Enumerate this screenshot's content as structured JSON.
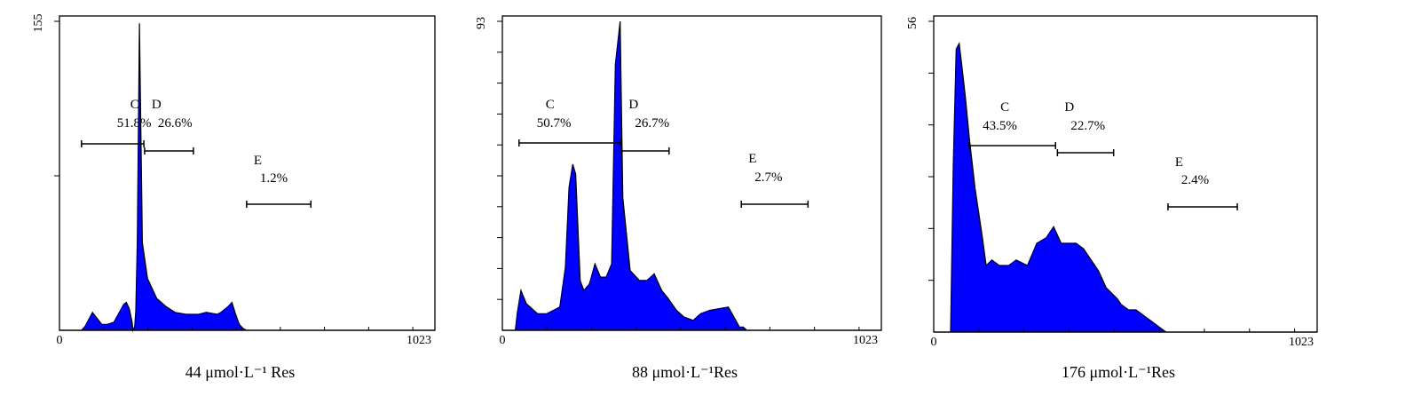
{
  "chart_data": [
    {
      "type": "area",
      "xlabel": "44 μmol·L⁻¹ Res",
      "xlim": [
        0,
        1023
      ],
      "x_tick_labels": [
        "0",
        "1023"
      ],
      "ylim": [
        0,
        155
      ],
      "y_max_label": "155",
      "fill_color": "#0000ff",
      "x": [
        0,
        60,
        70,
        90,
        115,
        130,
        148,
        160,
        175,
        182,
        190,
        198,
        200,
        205,
        208,
        212,
        218,
        226,
        240,
        265,
        290,
        315,
        345,
        380,
        400,
        430,
        440,
        460,
        470,
        480,
        490,
        500,
        510,
        520,
        1023
      ],
      "y": [
        0,
        0,
        2,
        9,
        3,
        3,
        4,
        8,
        13,
        14,
        11,
        4,
        0,
        2,
        10,
        45,
        154,
        44,
        26,
        16,
        12,
        9,
        8,
        8,
        9,
        8,
        9,
        12,
        14,
        8,
        3,
        1,
        0,
        0,
        0
      ],
      "gates": [
        {
          "label": "C",
          "value": "51.8%",
          "x_range": [
            60,
            230
          ]
        },
        {
          "label": "D",
          "value": "26.6%",
          "x_range": [
            232,
            365
          ]
        },
        {
          "label": "E",
          "value": "1.2%",
          "x_range": [
            510,
            685
          ]
        }
      ]
    },
    {
      "type": "area",
      "xlabel": "88 μmol·L⁻¹Res",
      "xlim": [
        0,
        1023
      ],
      "x_tick_labels": [
        "0",
        "1023"
      ],
      "ylim": [
        0,
        93
      ],
      "y_max_label": "93",
      "fill_color": "#0000ff",
      "x": [
        0,
        35,
        40,
        50,
        65,
        95,
        120,
        155,
        170,
        180,
        190,
        198,
        210,
        220,
        235,
        250,
        265,
        280,
        295,
        305,
        318,
        325,
        345,
        370,
        390,
        410,
        430,
        445,
        470,
        490,
        515,
        535,
        560,
        610,
        620,
        630,
        640,
        650,
        660,
        680,
        1023
      ],
      "y": [
        0,
        0,
        5,
        12,
        8,
        5,
        5,
        7,
        19,
        43,
        50,
        47,
        15,
        12,
        14,
        20,
        16,
        16,
        20,
        80,
        93,
        40,
        18,
        15,
        15,
        17,
        12,
        10,
        6,
        4,
        3,
        5,
        6,
        7,
        5,
        3,
        1,
        1,
        0,
        0,
        0
      ],
      "gates": [
        {
          "label": "C",
          "value": "50.7%",
          "x_range": [
            45,
            320
          ]
        },
        {
          "label": "D",
          "value": "26.7%",
          "x_range": [
            322,
            450
          ]
        },
        {
          "label": "E",
          "value": "2.7%",
          "x_range": [
            645,
            825
          ]
        }
      ]
    },
    {
      "type": "area",
      "xlabel": "176 μmol·L⁻¹Res",
      "xlim": [
        0,
        1023
      ],
      "x_tick_labels": [
        "0",
        "1023"
      ],
      "ylim": [
        0,
        56
      ],
      "y_max_label": "56",
      "fill_color": "#0000ff",
      "x": [
        0,
        45,
        52,
        60,
        68,
        75,
        85,
        95,
        110,
        130,
        140,
        155,
        175,
        200,
        220,
        250,
        275,
        300,
        320,
        340,
        360,
        380,
        400,
        420,
        440,
        460,
        475,
        490,
        500,
        520,
        540,
        560,
        580,
        600,
        620,
        650,
        670,
        720,
        1023
      ],
      "y": [
        0,
        0,
        30,
        51,
        52,
        48,
        42,
        35,
        26,
        17,
        12,
        13,
        12,
        12,
        13,
        12,
        16,
        17,
        19,
        16,
        16,
        16,
        15,
        13,
        11,
        8,
        7,
        6,
        5,
        4,
        4,
        3,
        2,
        1,
        0,
        0,
        0,
        0,
        0
      ],
      "gates": [
        {
          "label": "C",
          "value": "43.5%",
          "x_range": [
            95,
            325
          ]
        },
        {
          "label": "D",
          "value": "22.7%",
          "x_range": [
            330,
            480
          ]
        },
        {
          "label": "E",
          "value": "2.4%",
          "x_range": [
            625,
            810
          ]
        }
      ]
    }
  ]
}
